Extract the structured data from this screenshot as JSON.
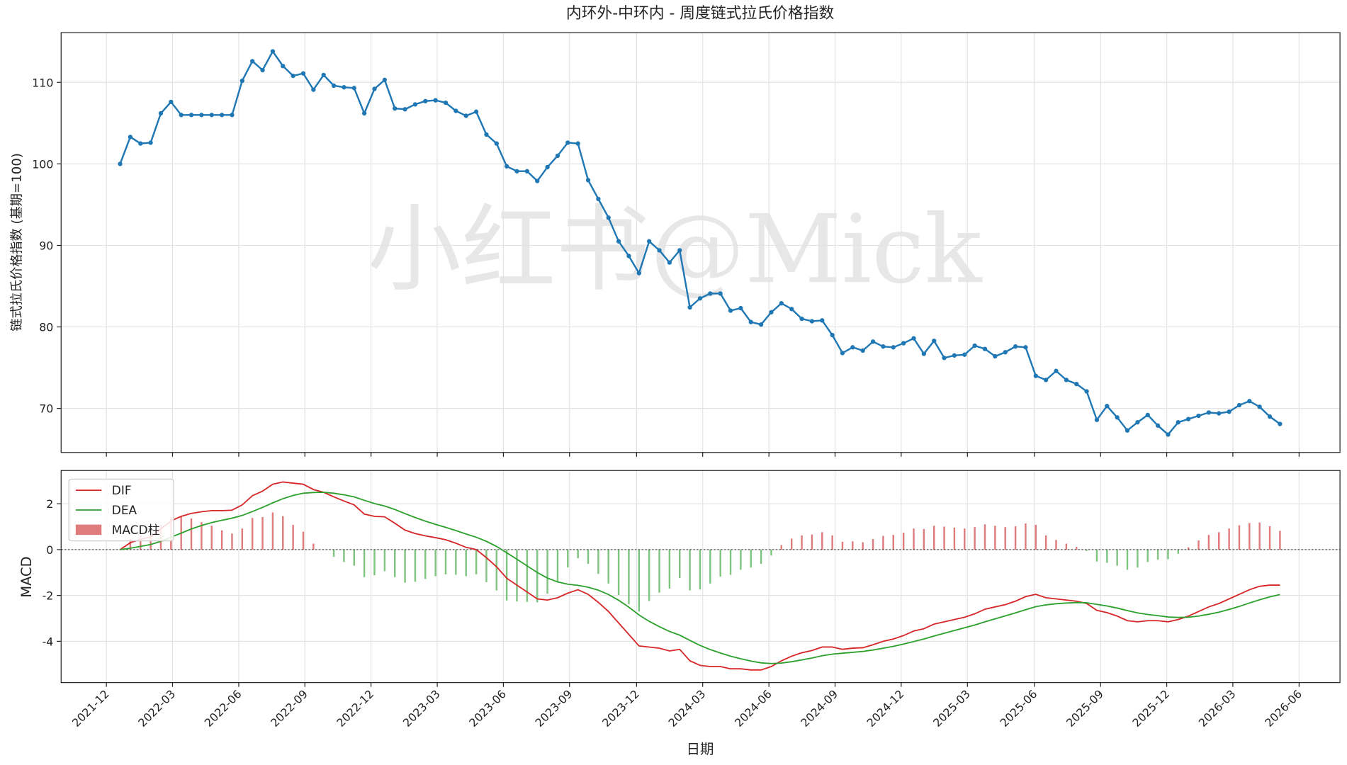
{
  "chart_data": [
    {
      "type": "line",
      "title": "内环外-中环内 - 周度链式拉氏价格指数",
      "y_label": "链式拉氏价格指数 (基期=100)",
      "watermark": "小红书@Mick",
      "color": "#1f77b4",
      "grid": true,
      "values": [
        100.0,
        103.3,
        102.5,
        102.6,
        106.2,
        107.6,
        106.0,
        106.0,
        106.0,
        106.0,
        106.0,
        106.0,
        110.2,
        112.6,
        111.5,
        113.8,
        112.0,
        110.8,
        111.1,
        109.1,
        110.9,
        109.6,
        109.4,
        109.3,
        106.2,
        109.2,
        110.3,
        106.8,
        106.7,
        107.3,
        107.7,
        107.8,
        107.5,
        106.5,
        105.9,
        106.4,
        103.6,
        102.5,
        99.7,
        99.1,
        99.1,
        97.9,
        99.6,
        101.0,
        102.6,
        102.5,
        98.0,
        95.7,
        93.4,
        90.5,
        88.7,
        86.6,
        90.5,
        89.4,
        87.9,
        89.4,
        82.4,
        83.5,
        84.1,
        84.1,
        82.0,
        82.3,
        80.6,
        80.3,
        81.8,
        82.9,
        82.2,
        81.0,
        80.7,
        80.8,
        79.0,
        76.8,
        77.5,
        77.1,
        78.2,
        77.6,
        77.5,
        78.0,
        78.6,
        76.7,
        78.3,
        76.2,
        76.5,
        76.6,
        77.7,
        77.3,
        76.4,
        76.9,
        77.6,
        77.5,
        74.0,
        73.5,
        74.6,
        73.5,
        73.0,
        72.1,
        68.6,
        70.3,
        68.9,
        67.3,
        68.3,
        69.2,
        67.9,
        66.8,
        68.3,
        68.7,
        69.1,
        69.5,
        69.4,
        69.6,
        70.4,
        70.9,
        70.2,
        69.0,
        68.1
      ],
      "ylim": [
        64.6,
        116.1
      ],
      "yticks": [
        70,
        80,
        90,
        100,
        110
      ]
    },
    {
      "type": "combo",
      "y_label": "MACD",
      "x_label": "日期",
      "grid": true,
      "legend": "upper left",
      "xlim": [
        -5.8,
        119.9
      ],
      "xticks": [
        {
          "value": -1.35,
          "label": "2021-12"
        },
        {
          "value": 5.15,
          "label": "2022-03"
        },
        {
          "value": 11.66,
          "label": "2022-06"
        },
        {
          "value": 18.16,
          "label": "2022-09"
        },
        {
          "value": 24.66,
          "label": "2022-12"
        },
        {
          "value": 31.17,
          "label": "2023-03"
        },
        {
          "value": 37.67,
          "label": "2023-06"
        },
        {
          "value": 44.17,
          "label": "2023-09"
        },
        {
          "value": 50.76,
          "label": "2023-12"
        },
        {
          "value": 57.26,
          "label": "2024-03"
        },
        {
          "value": 63.77,
          "label": "2024-06"
        },
        {
          "value": 70.27,
          "label": "2024-09"
        },
        {
          "value": 76.77,
          "label": "2024-12"
        },
        {
          "value": 83.28,
          "label": "2025-03"
        },
        {
          "value": 89.86,
          "label": "2025-06"
        },
        {
          "value": 96.37,
          "label": "2025-09"
        },
        {
          "value": 102.87,
          "label": "2025-12"
        },
        {
          "value": 109.37,
          "label": "2026-03"
        },
        {
          "value": 115.88,
          "label": "2026-06"
        }
      ],
      "ylim": [
        -5.8,
        3.45
      ],
      "yticks": [
        2,
        0,
        -2,
        -4
      ],
      "series": [
        {
          "name": "DIF",
          "type": "line",
          "color": "#d62728",
          "values": [
            0,
            0.3,
            0.45,
            0.55,
            0.9,
            1.25,
            1.45,
            1.58,
            1.65,
            1.7,
            1.7,
            1.72,
            1.95,
            2.35,
            2.55,
            2.85,
            2.95,
            2.9,
            2.85,
            2.62,
            2.5,
            2.3,
            2.12,
            1.95,
            1.55,
            1.45,
            1.43,
            1.15,
            0.85,
            0.7,
            0.6,
            0.52,
            0.43,
            0.28,
            0.1,
            0.0,
            -0.35,
            -0.75,
            -1.25,
            -1.55,
            -1.85,
            -2.15,
            -2.2,
            -2.1,
            -1.9,
            -1.75,
            -1.95,
            -2.3,
            -2.7,
            -3.2,
            -3.7,
            -4.2,
            -4.25,
            -4.3,
            -4.42,
            -4.35,
            -4.85,
            -5.05,
            -5.1,
            -5.1,
            -5.2,
            -5.2,
            -5.25,
            -5.25,
            -5.1,
            -4.85,
            -4.65,
            -4.5,
            -4.4,
            -4.25,
            -4.25,
            -4.35,
            -4.3,
            -4.28,
            -4.15,
            -4.0,
            -3.9,
            -3.75,
            -3.55,
            -3.45,
            -3.25,
            -3.15,
            -3.05,
            -2.95,
            -2.8,
            -2.6,
            -2.5,
            -2.4,
            -2.25,
            -2.05,
            -1.95,
            -2.1,
            -2.15,
            -2.2,
            -2.25,
            -2.35,
            -2.65,
            -2.75,
            -2.9,
            -3.1,
            -3.15,
            -3.1,
            -3.1,
            -3.15,
            -3.05,
            -2.9,
            -2.7,
            -2.5,
            -2.35,
            -2.15,
            -1.95,
            -1.75,
            -1.6,
            -1.55,
            -1.55
          ]
        },
        {
          "name": "DEA",
          "type": "line",
          "color": "#2ca02c",
          "values": [
            0,
            0.06,
            0.14,
            0.22,
            0.36,
            0.54,
            0.72,
            0.9,
            1.05,
            1.18,
            1.28,
            1.37,
            1.49,
            1.66,
            1.84,
            2.04,
            2.22,
            2.36,
            2.46,
            2.49,
            2.5,
            2.46,
            2.39,
            2.3,
            2.15,
            2.01,
            1.9,
            1.75,
            1.57,
            1.4,
            1.24,
            1.1,
            0.97,
            0.83,
            0.68,
            0.54,
            0.36,
            0.14,
            -0.14,
            -0.42,
            -0.71,
            -1.0,
            -1.24,
            -1.41,
            -1.51,
            -1.56,
            -1.64,
            -1.77,
            -1.96,
            -2.21,
            -2.51,
            -2.85,
            -3.13,
            -3.36,
            -3.57,
            -3.73,
            -3.96,
            -4.18,
            -4.36,
            -4.51,
            -4.65,
            -4.76,
            -4.86,
            -4.94,
            -4.97,
            -4.95,
            -4.89,
            -4.81,
            -4.73,
            -4.63,
            -4.56,
            -4.52,
            -4.48,
            -4.44,
            -4.38,
            -4.3,
            -4.22,
            -4.12,
            -4.01,
            -3.9,
            -3.77,
            -3.65,
            -3.53,
            -3.41,
            -3.29,
            -3.15,
            -3.02,
            -2.89,
            -2.76,
            -2.62,
            -2.49,
            -2.41,
            -2.36,
            -2.33,
            -2.31,
            -2.32,
            -2.39,
            -2.46,
            -2.55,
            -2.66,
            -2.76,
            -2.83,
            -2.88,
            -2.94,
            -2.96,
            -2.95,
            -2.9,
            -2.82,
            -2.73,
            -2.61,
            -2.48,
            -2.33,
            -2.19,
            -2.06,
            -1.96
          ]
        },
        {
          "name": "MACD柱",
          "type": "bar",
          "color": "#e07b7b",
          "negative_color": "#7fc47f",
          "values": [
            0,
            0.48,
            0.62,
            0.66,
            1.08,
            1.42,
            1.46,
            1.36,
            1.2,
            1.04,
            0.84,
            0.7,
            0.92,
            1.38,
            1.42,
            1.62,
            1.46,
            1.08,
            0.78,
            0.26,
            0,
            -0.32,
            -0.54,
            -0.7,
            -1.2,
            -1.12,
            -0.94,
            -1.2,
            -1.44,
            -1.4,
            -1.28,
            -1.16,
            -1.08,
            -1.1,
            -1.16,
            -1.08,
            -1.42,
            -1.78,
            -2.22,
            -2.26,
            -2.28,
            -2.3,
            -1.92,
            -1.38,
            -0.78,
            -0.38,
            -0.62,
            -1.06,
            -1.48,
            -1.98,
            -2.38,
            -2.7,
            -2.24,
            -1.88,
            -1.7,
            -1.24,
            -1.78,
            -1.74,
            -1.48,
            -1.18,
            -1.1,
            -0.88,
            -0.78,
            -0.62,
            -0.26,
            0.2,
            0.48,
            0.62,
            0.66,
            0.76,
            0.62,
            0.34,
            0.36,
            0.32,
            0.46,
            0.6,
            0.64,
            0.74,
            0.92,
            0.9,
            1.04,
            1.0,
            0.96,
            0.92,
            0.98,
            1.1,
            1.04,
            0.98,
            1.02,
            1.14,
            1.08,
            0.62,
            0.42,
            0.26,
            0.12,
            -0.06,
            -0.52,
            -0.58,
            -0.7,
            -0.88,
            -0.78,
            -0.54,
            -0.44,
            -0.42,
            -0.18,
            0.1,
            0.4,
            0.64,
            0.76,
            0.92,
            1.06,
            1.16,
            1.18,
            1.02,
            0.82
          ]
        }
      ]
    }
  ]
}
